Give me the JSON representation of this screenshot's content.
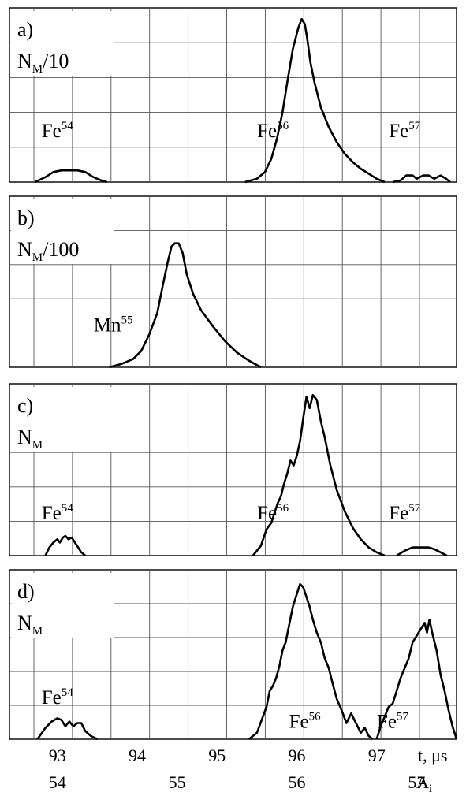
{
  "chart_data": [
    {
      "panel": "a)",
      "type": "line",
      "y_label": "N",
      "y_label_sub": "M",
      "y_label_suffix": "/10",
      "grid": true,
      "xlim": [
        92.4,
        98.0
      ],
      "ylim": [
        0,
        1
      ],
      "annotations": [
        {
          "base": "Fe",
          "sup": "54",
          "at_x": 93.0,
          "at_y": 0.27
        },
        {
          "base": "Fe",
          "sup": "56",
          "at_x": 95.7,
          "at_y": 0.27
        },
        {
          "base": "Fe",
          "sup": "57",
          "at_x": 97.35,
          "at_y": 0.27
        }
      ],
      "series": [
        {
          "x": [
            92.72,
            92.85,
            92.95,
            93.05,
            93.15,
            93.25,
            93.35,
            93.45,
            93.55,
            93.62
          ],
          "y": [
            0.0,
            0.03,
            0.06,
            0.07,
            0.07,
            0.07,
            0.06,
            0.03,
            0.01,
            0.0
          ]
        },
        {
          "x": [
            95.35,
            95.5,
            95.6,
            95.68,
            95.75,
            95.82,
            95.88,
            95.95,
            96.02,
            96.06,
            96.1,
            96.13,
            96.17,
            96.22,
            96.3,
            96.4,
            96.5,
            96.6,
            96.7,
            96.8,
            96.9,
            97.0,
            97.1
          ],
          "y": [
            0.0,
            0.02,
            0.06,
            0.14,
            0.26,
            0.42,
            0.6,
            0.8,
            0.93,
            0.98,
            0.95,
            0.86,
            0.72,
            0.6,
            0.45,
            0.33,
            0.24,
            0.17,
            0.12,
            0.08,
            0.05,
            0.02,
            0.0
          ]
        },
        {
          "x": [
            97.2,
            97.3,
            97.37,
            97.45,
            97.5,
            97.58,
            97.65,
            97.72,
            97.8,
            97.87,
            97.92
          ],
          "y": [
            0.0,
            0.01,
            0.04,
            0.04,
            0.02,
            0.04,
            0.04,
            0.02,
            0.04,
            0.02,
            0.0
          ]
        }
      ]
    },
    {
      "panel": "b)",
      "type": "line",
      "y_label": "N",
      "y_label_sub": "M",
      "y_label_suffix": "/100",
      "grid": true,
      "xlim": [
        92.4,
        98.0
      ],
      "ylim": [
        0,
        1
      ],
      "annotations": [
        {
          "base": "Mn",
          "sup": "55",
          "at_x": 93.7,
          "at_y": 0.22
        }
      ],
      "series": [
        {
          "x": [
            93.65,
            93.8,
            93.95,
            94.05,
            94.15,
            94.25,
            94.32,
            94.38,
            94.43,
            94.47,
            94.52,
            94.57,
            94.62,
            94.7,
            94.8,
            94.95,
            95.1,
            95.25,
            95.4,
            95.55
          ],
          "y": [
            0.0,
            0.02,
            0.05,
            0.1,
            0.2,
            0.33,
            0.5,
            0.64,
            0.74,
            0.76,
            0.76,
            0.7,
            0.57,
            0.45,
            0.35,
            0.25,
            0.16,
            0.09,
            0.04,
            0.0
          ]
        }
      ]
    },
    {
      "panel": "c)",
      "type": "line",
      "y_label": "N",
      "y_label_sub": "M",
      "y_label_suffix": "",
      "grid": true,
      "xlim": [
        92.4,
        98.0
      ],
      "ylim": [
        0,
        1
      ],
      "annotations": [
        {
          "base": "Fe",
          "sup": "54",
          "at_x": 93.0,
          "at_y": 0.22
        },
        {
          "base": "Fe",
          "sup": "56",
          "at_x": 95.7,
          "at_y": 0.22
        },
        {
          "base": "Fe",
          "sup": "57",
          "at_x": 97.35,
          "at_y": 0.22
        }
      ],
      "series": [
        {
          "x": [
            92.85,
            92.9,
            92.95,
            93.0,
            93.03,
            93.07,
            93.1,
            93.14,
            93.18,
            93.22,
            93.26,
            93.3,
            93.35
          ],
          "y": [
            0.0,
            0.05,
            0.08,
            0.1,
            0.08,
            0.11,
            0.12,
            0.1,
            0.11,
            0.08,
            0.05,
            0.02,
            0.0
          ]
        },
        {
          "x": [
            95.45,
            95.55,
            95.62,
            95.68,
            95.72,
            95.76,
            95.8,
            95.84,
            95.88,
            95.92,
            95.96,
            96.0,
            96.04,
            96.08,
            96.12,
            96.16,
            96.2,
            96.25,
            96.3,
            96.35,
            96.42,
            96.5,
            96.6,
            96.7,
            96.8,
            96.9,
            97.0,
            97.1
          ],
          "y": [
            0.0,
            0.06,
            0.16,
            0.2,
            0.26,
            0.32,
            0.36,
            0.44,
            0.5,
            0.58,
            0.55,
            0.61,
            0.7,
            0.84,
            0.97,
            0.9,
            0.98,
            0.95,
            0.82,
            0.72,
            0.55,
            0.4,
            0.27,
            0.17,
            0.1,
            0.05,
            0.02,
            0.0
          ]
        },
        {
          "x": [
            97.25,
            97.35,
            97.45,
            97.55,
            97.65,
            97.72,
            97.8,
            97.88
          ],
          "y": [
            0.0,
            0.03,
            0.05,
            0.05,
            0.05,
            0.04,
            0.02,
            0.0
          ]
        }
      ]
    },
    {
      "panel": "d)",
      "type": "line",
      "y_label": "N",
      "y_label_sub": "M",
      "y_label_suffix": "",
      "grid": true,
      "xlim": [
        92.4,
        98.0
      ],
      "ylim": [
        0,
        1
      ],
      "x_ticks": {
        "values": [
          93,
          94,
          95,
          96,
          97
        ],
        "labels": [
          "93",
          "94",
          "95",
          "96",
          "97"
        ],
        "mass_labels": [
          "54",
          "55",
          "56",
          "57"
        ],
        "mass_positions": [
          93.0,
          94.5,
          96.0,
          97.5
        ],
        "time_unit": "t, μs",
        "mass_unit": "A",
        "mass_unit_sub": "i"
      },
      "annotations": [
        {
          "base": "Fe",
          "sup": "54",
          "at_x": 93.0,
          "at_y": 0.22
        },
        {
          "base": "Fe",
          "sup": "56",
          "at_x": 96.1,
          "at_y": 0.07
        },
        {
          "base": "Fe",
          "sup": "57",
          "at_x": 97.2,
          "at_y": 0.07
        }
      ],
      "series": [
        {
          "x": [
            92.75,
            92.85,
            92.93,
            93.0,
            93.05,
            93.1,
            93.15,
            93.2,
            93.25,
            93.3,
            93.35,
            93.42,
            93.5
          ],
          "y": [
            0.0,
            0.07,
            0.11,
            0.13,
            0.12,
            0.08,
            0.11,
            0.08,
            0.1,
            0.1,
            0.05,
            0.02,
            0.0
          ]
        },
        {
          "x": [
            95.4,
            95.5,
            95.56,
            95.62,
            95.66,
            95.7,
            95.74,
            95.78,
            95.82,
            95.86,
            95.9,
            95.95,
            96.0,
            96.04,
            96.08,
            96.12,
            96.16,
            96.2,
            96.25,
            96.3,
            96.35,
            96.4,
            96.45,
            96.5,
            96.56,
            96.62,
            96.68,
            96.74,
            96.8,
            96.85,
            96.9,
            96.95
          ],
          "y": [
            0.0,
            0.04,
            0.12,
            0.2,
            0.3,
            0.33,
            0.38,
            0.45,
            0.55,
            0.6,
            0.7,
            0.82,
            0.9,
            0.96,
            0.94,
            0.88,
            0.82,
            0.74,
            0.66,
            0.6,
            0.5,
            0.44,
            0.34,
            0.25,
            0.18,
            0.1,
            0.16,
            0.1,
            0.04,
            0.07,
            0.02,
            0.0
          ]
        },
        {
          "x": [
            97.0,
            97.05,
            97.1,
            97.15,
            97.2,
            97.25,
            97.3,
            97.35,
            97.4,
            97.45,
            97.5,
            97.55,
            97.6,
            97.63,
            97.66,
            97.7,
            97.75,
            97.8,
            97.85,
            97.9,
            97.95,
            98.0
          ],
          "y": [
            0.0,
            0.08,
            0.14,
            0.2,
            0.22,
            0.3,
            0.38,
            0.44,
            0.5,
            0.6,
            0.64,
            0.68,
            0.72,
            0.66,
            0.74,
            0.65,
            0.55,
            0.4,
            0.3,
            0.18,
            0.08,
            0.0
          ]
        }
      ]
    }
  ]
}
